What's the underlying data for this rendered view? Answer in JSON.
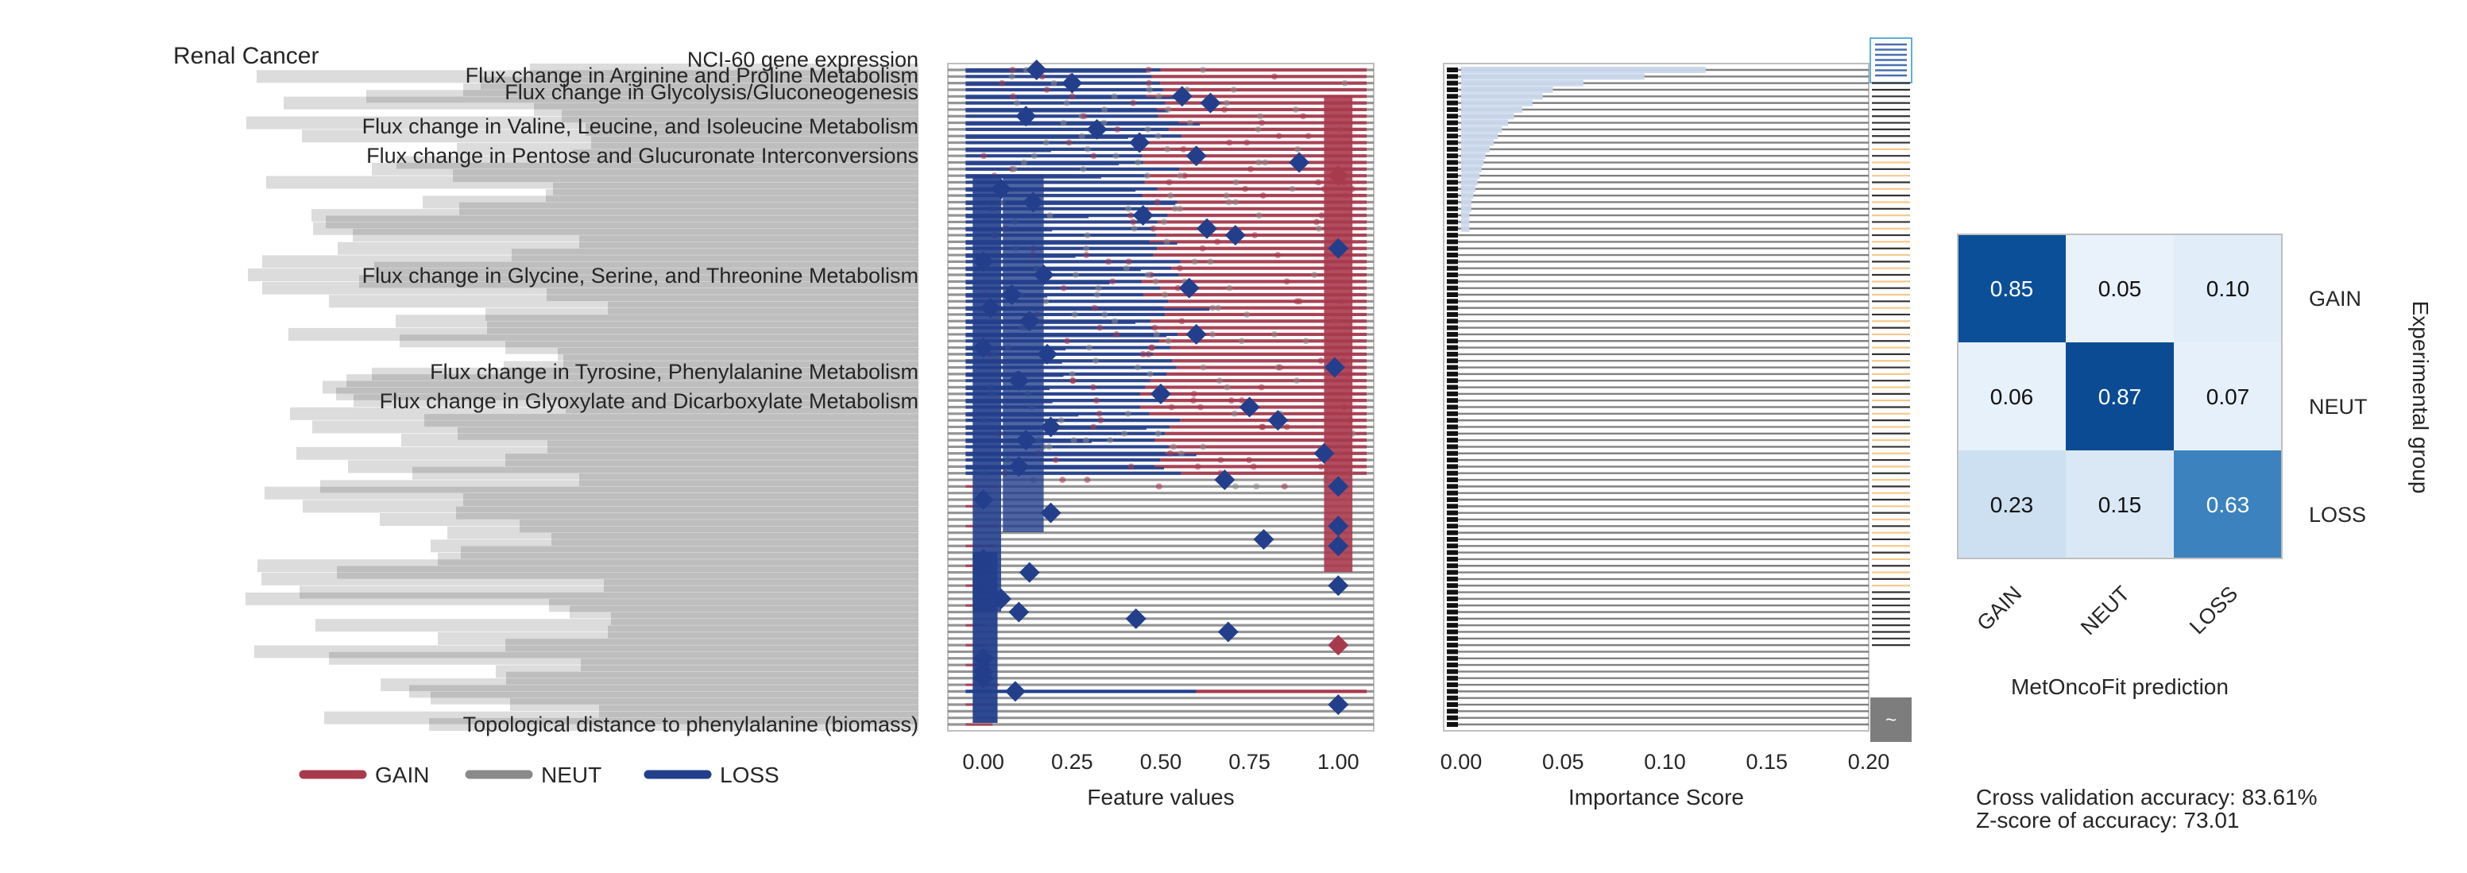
{
  "figure": {
    "title": "Renal Cancer",
    "legend": [
      {
        "label": "GAIN",
        "color": "#a83a4e"
      },
      {
        "label": "NEUT",
        "color": "#8a8a8a"
      },
      {
        "label": "LOSS",
        "color": "#233f8c"
      }
    ],
    "cv_accuracy": "Cross validation accuracy: 83.61%",
    "z_score": "Z-score of accuracy: 73.01"
  },
  "chart_data": [
    {
      "type": "scatter",
      "title": "",
      "xlabel": "Feature values",
      "ylabel": "",
      "xlim": [
        -0.1,
        1.1
      ],
      "xticks": [
        "0.00",
        "0.25",
        "0.50",
        "0.75",
        "1.00"
      ],
      "feature_count": 100,
      "features_legible": [
        "NCI-60 gene expression",
        "Flux change in Arginine and Proline Metabolism",
        "Flux change in Glycolysis/Gluconeogenesis",
        "Flux change in Valine, Leucine, and Isoleucine Metabolism",
        "Flux change in Pentose and Glucuronate Interconversions",
        "Flux change in Glycine, Serine, and Threonine Metabolism",
        "Flux change in Tyrosine, Phenylalanine Metabolism",
        "Flux change in Glyoxylate and Dicarboxylate Metabolism",
        "Topological distance to phenylalanine (biomass)"
      ],
      "series": [
        {
          "name": "GAIN",
          "color": "#a83a4e"
        },
        {
          "name": "NEUT",
          "color": "#8a8a8a"
        },
        {
          "name": "LOSS",
          "color": "#233f8c"
        }
      ],
      "diamond_values": [
        0.15,
        0.25,
        0.56,
        0.64,
        0.12,
        0.32,
        0.44,
        0.6,
        0.89,
        1.0,
        0.05,
        0.14,
        0.45,
        0.63,
        0.71,
        1.0,
        0.0,
        0.17,
        0.58,
        0.08,
        0.02,
        0.13,
        0.6,
        0.0,
        0.18,
        0.99,
        0.1,
        0.5,
        0.75,
        0.83,
        0.19,
        0.12,
        0.96,
        0.1,
        0.68,
        1.0,
        0.0,
        0.19,
        1.0,
        0.79,
        1.0,
        0.0,
        0.13,
        1.0,
        0.05,
        0.1,
        0.43,
        0.69,
        1.0,
        0.0,
        0.0,
        0.0,
        0.09,
        1.0
      ]
    },
    {
      "type": "bar",
      "orientation": "horizontal",
      "xlabel": "Importance Score",
      "xlim": [
        0.0,
        0.2
      ],
      "xticks": [
        "0.00",
        "0.05",
        "0.10",
        "0.15",
        "0.20"
      ],
      "values": [
        0.12,
        0.09,
        0.06,
        0.045,
        0.04,
        0.035,
        0.03,
        0.026,
        0.023,
        0.02,
        0.018,
        0.016,
        0.014,
        0.012,
        0.011,
        0.01,
        0.009,
        0.008,
        0.007,
        0.006,
        0.005,
        0.005,
        0.004,
        0.004,
        0.004
      ]
    },
    {
      "type": "heatmap",
      "rows": [
        "GAIN",
        "NEUT",
        "LOSS"
      ],
      "cols": [
        "GAIN",
        "NEUT",
        "LOSS"
      ],
      "values": [
        [
          0.85,
          0.05,
          0.1
        ],
        [
          0.06,
          0.87,
          0.07
        ],
        [
          0.23,
          0.15,
          0.63
        ]
      ],
      "xlabel": "MetOncoFit prediction",
      "ylabel": "Experimental group",
      "cmap": "Blues"
    }
  ],
  "colorbar": {
    "label": "~"
  }
}
